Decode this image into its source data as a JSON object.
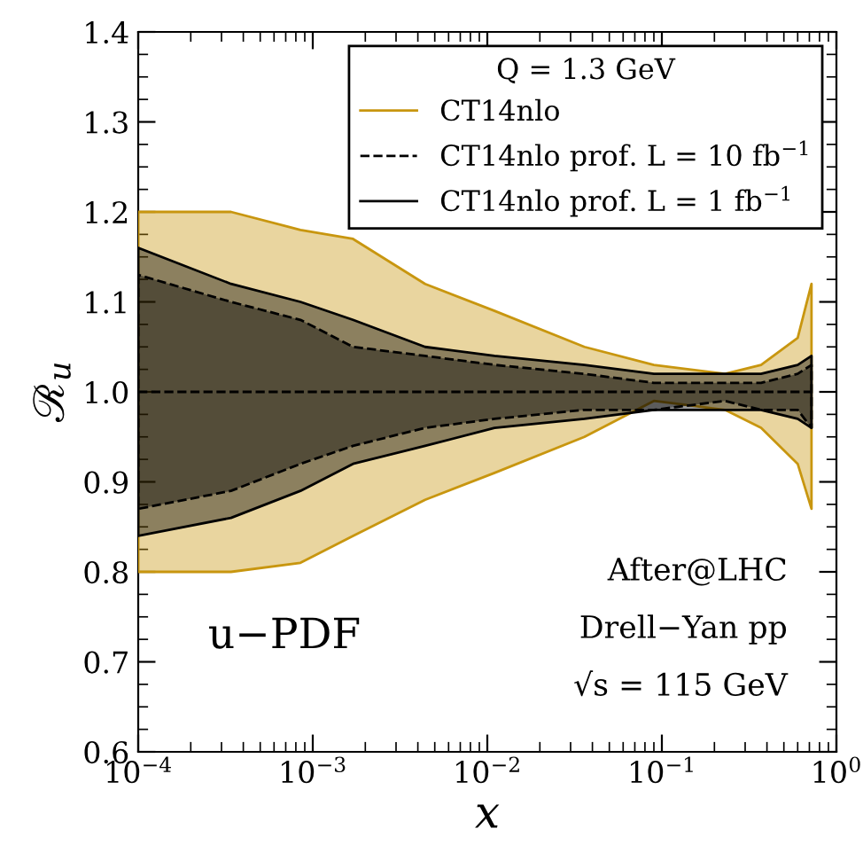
{
  "chart_data": {
    "type": "line",
    "xlabel": "x",
    "ylabel": "ℛ$_{u}$",
    "legend_title": "Q = 1.3 GeV",
    "legend": "top right",
    "log": "x",
    "grid": false,
    "x": [
      0.0001,
      0.00034,
      0.00085,
      0.0017,
      0.0044,
      0.011,
      0.036,
      0.09,
      0.23,
      0.37,
      0.6,
      0.72
    ],
    "xlim": [
      0.0001,
      1
    ],
    "xticks": [
      {
        "value": 0.0001,
        "label": "10$^{−4}$"
      },
      {
        "value": 0.001,
        "label": "10$^{−3}$"
      },
      {
        "value": 0.01,
        "label": "10$^{−2}$"
      },
      {
        "value": 0.1,
        "label": "10$^{−1}$"
      },
      {
        "value": 1,
        "label": "10$^{0}$"
      }
    ],
    "ylim": [
      0.6,
      1.4
    ],
    "yticks": [
      0.6,
      0.7,
      0.8,
      0.9,
      {
        "value": 1.0,
        "label": "1.0"
      },
      1.1,
      1.2,
      1.3,
      1.4
    ],
    "series": [
      {
        "name": "CT14nlo",
        "color": "#c8960f",
        "line_style": "solid",
        "values": [
          null,
          null,
          null,
          null,
          null,
          null,
          null,
          null,
          null,
          null,
          null,
          null
        ],
        "lower": [
          0.8,
          0.8,
          0.81,
          0.84,
          0.88,
          0.91,
          0.95,
          0.99,
          0.98,
          0.96,
          0.92,
          0.87
        ],
        "upper": [
          1.2,
          1.2,
          1.18,
          1.17,
          1.12,
          1.09,
          1.05,
          1.03,
          1.02,
          1.03,
          1.06,
          1.12
        ]
      },
      {
        "name": "CT14nlo prof. L = 10 fb$^{−1}$",
        "color": "#000000",
        "line_style": "dashed",
        "values": [
          1.0,
          1.0,
          1.0,
          1.0,
          1.0,
          1.0,
          1.0,
          1.0,
          1.0,
          1.0,
          1.0,
          1.0
        ],
        "lower": [
          0.87,
          0.89,
          0.92,
          0.94,
          0.96,
          0.97,
          0.98,
          0.98,
          0.99,
          0.98,
          0.98,
          0.96
        ],
        "upper": [
          1.13,
          1.1,
          1.08,
          1.05,
          1.04,
          1.03,
          1.02,
          1.01,
          1.01,
          1.01,
          1.02,
          1.03
        ]
      },
      {
        "name": "CT14nlo prof. L = 1 fb$^{−1}$",
        "color": "#000000",
        "line_style": "solid",
        "values": [
          null,
          null,
          null,
          null,
          null,
          null,
          null,
          null,
          null,
          null,
          null,
          null
        ],
        "lower": [
          0.84,
          0.86,
          0.89,
          0.92,
          0.94,
          0.96,
          0.97,
          0.98,
          0.98,
          0.98,
          0.97,
          0.96
        ],
        "upper": [
          1.16,
          1.12,
          1.1,
          1.08,
          1.05,
          1.04,
          1.03,
          1.02,
          1.02,
          1.02,
          1.03,
          1.04
        ]
      }
    ],
    "annotations": [
      {
        "text": "u−PDF"
      },
      {
        "text": "After@LHC"
      },
      {
        "text": "Drell−Yan pp"
      },
      {
        "text": "√s = 115 GeV"
      }
    ]
  }
}
